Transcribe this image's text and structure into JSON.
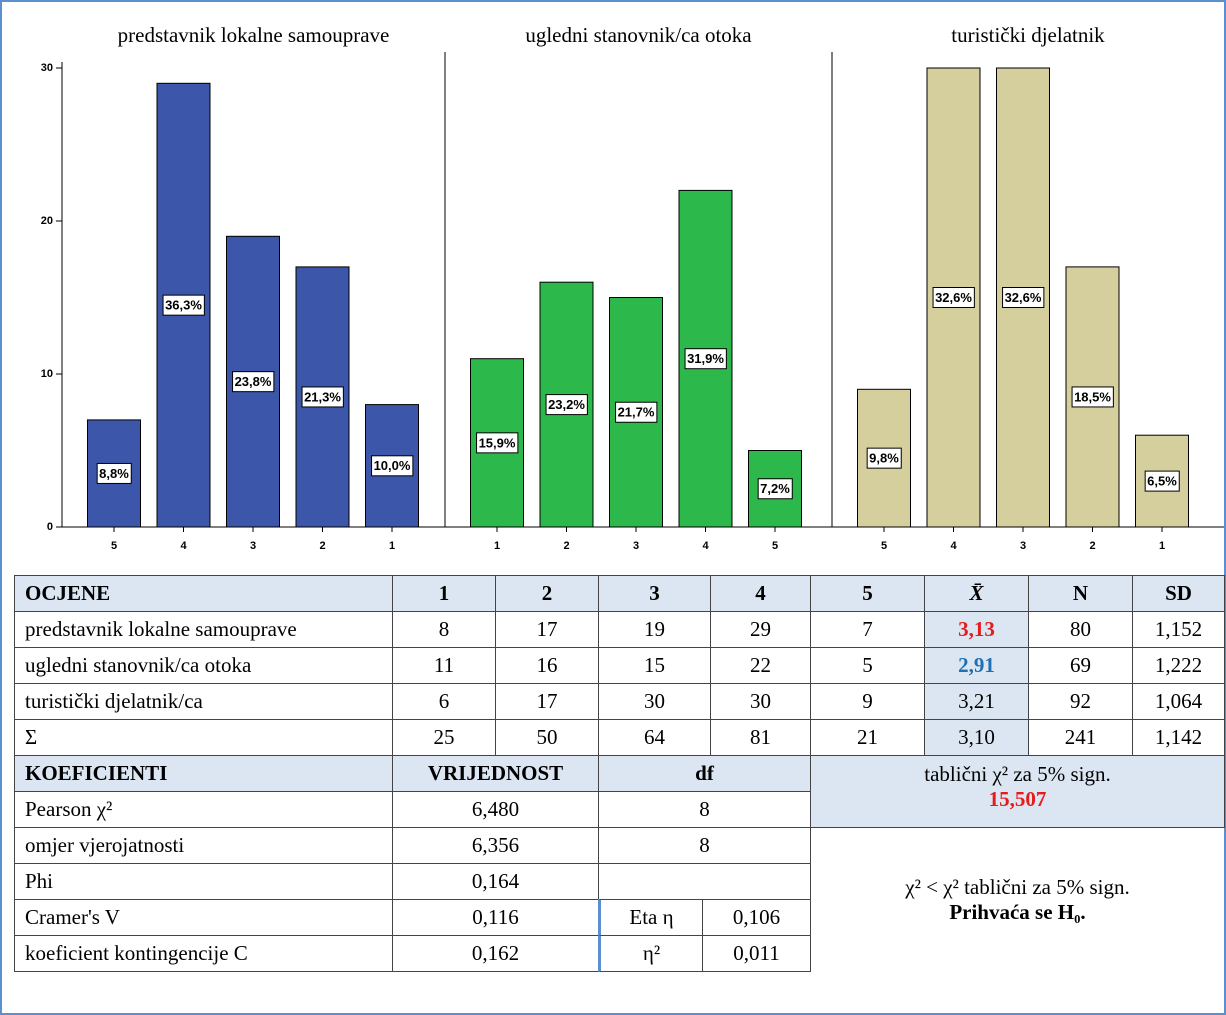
{
  "chart_data": [
    {
      "type": "bar",
      "title": "predstavnik lokalne samouprave",
      "categories": [
        "5",
        "4",
        "3",
        "2",
        "1"
      ],
      "values": [
        7,
        29,
        19,
        17,
        8
      ],
      "bar_labels": [
        "8,8%",
        "36,3%",
        "23,8%",
        "21,3%",
        "10,0%"
      ],
      "color": "#3c56a9",
      "ylim": [
        0,
        30
      ],
      "yticks": [
        0,
        10,
        20,
        30
      ]
    },
    {
      "type": "bar",
      "title": "ugledni stanovnik/ca otoka",
      "categories": [
        "1",
        "2",
        "3",
        "4",
        "5"
      ],
      "values": [
        11,
        16,
        15,
        22,
        5
      ],
      "bar_labels": [
        "15,9%",
        "23,2%",
        "21,7%",
        "31,9%",
        "7,2%"
      ],
      "color": "#2cb84b",
      "ylim": [
        0,
        30
      ]
    },
    {
      "type": "bar",
      "title": "turistički djelatnik",
      "categories": [
        "5",
        "4",
        "3",
        "2",
        "1"
      ],
      "values": [
        9,
        30,
        30,
        17,
        6
      ],
      "bar_labels": [
        "9,8%",
        "32,6%",
        "32,6%",
        "18,5%",
        "6,5%"
      ],
      "color": "#d5cf9d",
      "ylim": [
        0,
        30
      ]
    }
  ],
  "ratings_table": {
    "header": [
      "OCJENE",
      "1",
      "2",
      "3",
      "4",
      "5",
      "X̄",
      "N",
      "SD"
    ],
    "rows": [
      [
        "predstavnik lokalne samouprave",
        "8",
        "17",
        "19",
        "29",
        "7",
        "3,13",
        "80",
        "1,152"
      ],
      [
        "ugledni stanovnik/ca otoka",
        "11",
        "16",
        "15",
        "22",
        "5",
        "2,91",
        "69",
        "1,222"
      ],
      [
        "turistički djelatnik/ca",
        "6",
        "17",
        "30",
        "30",
        "9",
        "3,21",
        "92",
        "1,064"
      ],
      [
        "Σ",
        "25",
        "50",
        "64",
        "81",
        "21",
        "3,10",
        "241",
        "1,142"
      ]
    ]
  },
  "coef_table": {
    "header": [
      "KOEFICIENTI",
      "VRIJEDNOST",
      "df"
    ],
    "rows": [
      [
        "Pearson χ²",
        "6,480",
        "8"
      ],
      [
        "omjer vjerojatnosti",
        "6,356",
        "8"
      ],
      [
        "Phi",
        "0,164"
      ],
      [
        "Cramer's V",
        "0,116",
        "Eta η",
        "0,106"
      ],
      [
        "koeficient kontingencije C",
        "0,162",
        "η²",
        "0,011"
      ]
    ]
  },
  "critical": {
    "label": "tablični χ² za 5% sign.",
    "value": "15,507"
  },
  "conclusion": {
    "text": "χ² < χ² tablični za 5% sign.",
    "result": "Prihvaća se H₀."
  }
}
